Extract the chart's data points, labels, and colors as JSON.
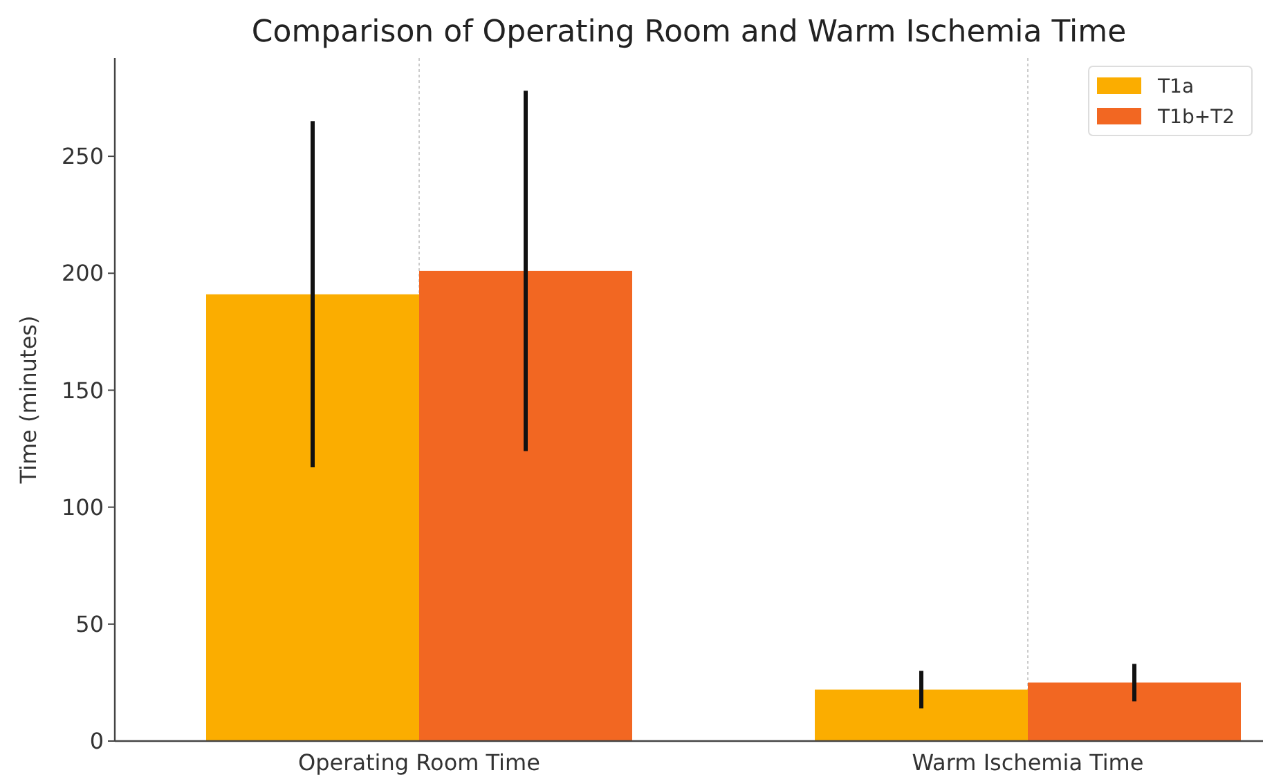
{
  "chart_data": {
    "type": "bar",
    "title": "Comparison of Operating Room and Warm Ischemia Time",
    "ylabel": "Time (minutes)",
    "categories": [
      "Operating Room Time",
      "Warm Ischemia Time"
    ],
    "series": [
      {
        "name": "T1a",
        "color": "#fbad00",
        "values": [
          191,
          22
        ],
        "errors": [
          74,
          8
        ]
      },
      {
        "name": "T1b+T2",
        "color": "#f26722",
        "values": [
          201,
          25
        ],
        "errors": [
          77,
          8
        ]
      }
    ],
    "ylim": [
      0,
      292
    ],
    "yticks": [
      0,
      50,
      100,
      150,
      200,
      250
    ],
    "grid": "x",
    "legend": "top right"
  }
}
